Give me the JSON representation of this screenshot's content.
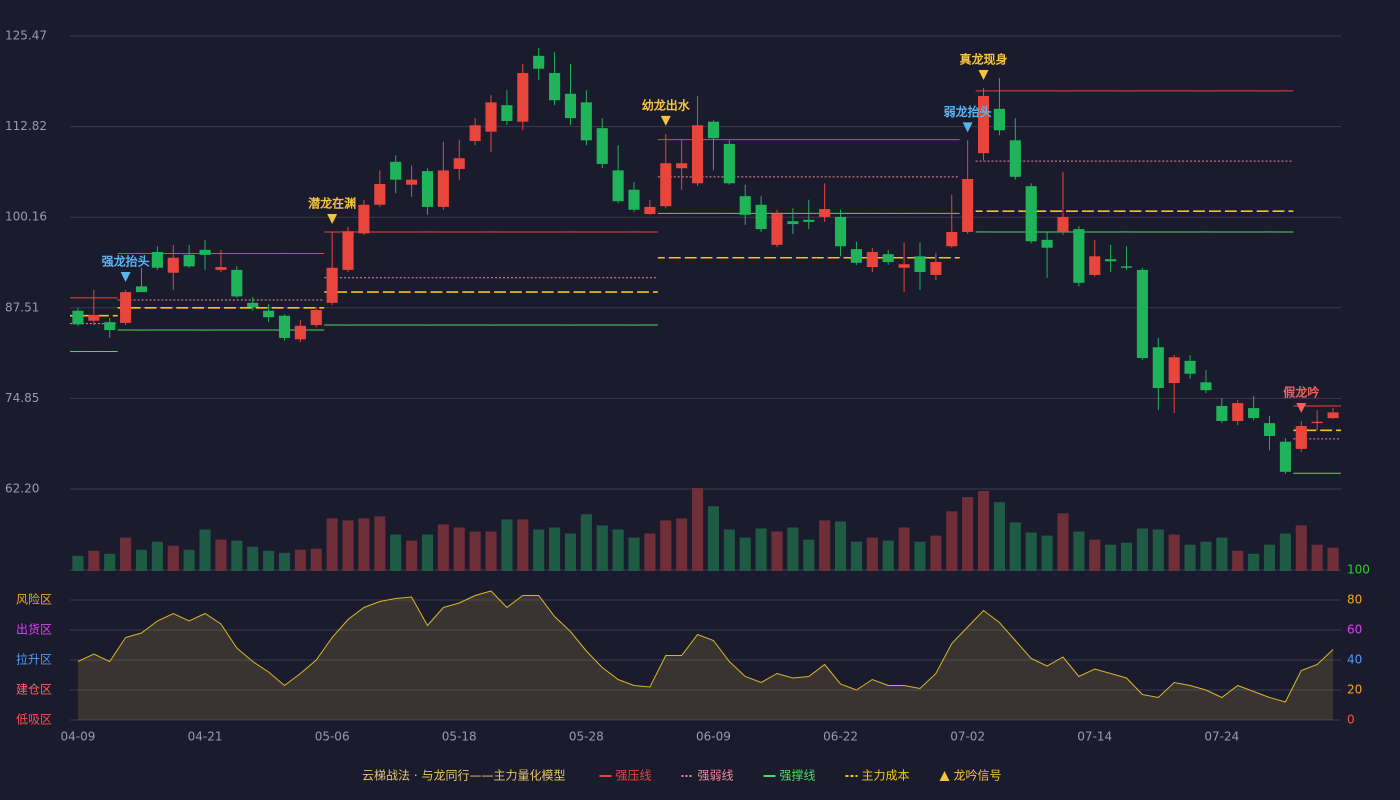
{
  "chart_data": {
    "type": "candlestick",
    "categories": [
      "04-09",
      null,
      null,
      null,
      null,
      null,
      null,
      null,
      "04-21",
      null,
      null,
      null,
      null,
      null,
      null,
      null,
      "05-06",
      null,
      null,
      null,
      null,
      null,
      null,
      null,
      "05-18",
      null,
      null,
      null,
      null,
      null,
      null,
      null,
      "05-28",
      null,
      null,
      null,
      null,
      null,
      null,
      null,
      "06-09",
      null,
      null,
      null,
      null,
      null,
      null,
      null,
      "06-22",
      null,
      null,
      null,
      null,
      null,
      null,
      null,
      "07-02",
      null,
      null,
      null,
      null,
      null,
      null,
      null,
      "07-14",
      null,
      null,
      null,
      null,
      null,
      null,
      null,
      "07-24",
      null,
      null,
      null,
      null,
      null,
      null,
      null
    ],
    "open": [
      87.1,
      85.7,
      85.5,
      85.4,
      90.5,
      95.3,
      92.4,
      94.9,
      95.6,
      92.8,
      92.8,
      88.2,
      87.1,
      86.4,
      83.1,
      85.1,
      88.2,
      92.8,
      97.9,
      101.9,
      107.9,
      104.7,
      106.6,
      101.6,
      106.9,
      110.8,
      112.1,
      115.8,
      113.5,
      122.7,
      120.3,
      117.4,
      116.2,
      112.6,
      106.7,
      104.0,
      100.6,
      101.7,
      107.0,
      104.9,
      113.5,
      110.4,
      103.1,
      101.9,
      96.3,
      99.6,
      99.8,
      100.2,
      100.2,
      95.7,
      93.2,
      95.0,
      93.1,
      94.7,
      92.1,
      96.1,
      98.1,
      109.1,
      115.3,
      110.9,
      104.5,
      97.0,
      98.1,
      98.5,
      92.1,
      94.3,
      93.3,
      92.8,
      82.0,
      77.0,
      80.1,
      77.1,
      73.8,
      71.7,
      73.5,
      71.4,
      68.8,
      67.8,
      71.4,
      72.1
    ],
    "high": [
      87.5,
      90.0,
      86.1,
      90.0,
      93.1,
      96.1,
      96.3,
      96.3,
      97.0,
      95.6,
      93.3,
      89.0,
      88.0,
      86.6,
      85.8,
      87.6,
      98.1,
      98.8,
      102.6,
      106.7,
      108.8,
      107.4,
      107.0,
      110.7,
      111.0,
      114.0,
      117.2,
      117.9,
      121.6,
      123.8,
      123.2,
      121.6,
      117.9,
      114.0,
      110.2,
      105.1,
      102.6,
      111.8,
      111.0,
      117.1,
      113.7,
      110.9,
      104.7,
      103.1,
      101.2,
      101.4,
      102.6,
      104.9,
      101.2,
      96.7,
      95.9,
      95.6,
      96.6,
      96.6,
      95.2,
      103.3,
      110.9,
      118.2,
      119.6,
      114.0,
      104.9,
      98.1,
      106.5,
      98.9,
      97.0,
      96.3,
      96.1,
      93.1,
      83.3,
      80.9,
      80.9,
      78.8,
      74.9,
      74.6,
      75.2,
      72.4,
      69.3,
      71.7,
      73.2,
      73.5
    ],
    "low": [
      85.0,
      85.1,
      83.3,
      85.1,
      89.7,
      92.8,
      90.0,
      93.1,
      92.8,
      92.5,
      88.9,
      87.1,
      85.5,
      82.9,
      82.7,
      84.8,
      87.9,
      92.5,
      97.7,
      101.6,
      103.5,
      103.0,
      100.5,
      101.2,
      105.4,
      110.2,
      109.3,
      113.0,
      112.3,
      119.3,
      115.8,
      113.0,
      110.2,
      107.0,
      102.1,
      100.9,
      100.5,
      101.4,
      104.0,
      104.5,
      106.7,
      104.7,
      99.1,
      98.1,
      96.0,
      97.8,
      98.5,
      99.5,
      94.7,
      93.5,
      92.5,
      93.5,
      89.7,
      90.0,
      91.4,
      95.9,
      97.8,
      108.1,
      111.6,
      105.4,
      96.5,
      91.7,
      97.7,
      90.5,
      91.9,
      92.5,
      92.8,
      80.2,
      73.2,
      72.8,
      77.6,
      75.6,
      71.4,
      71.1,
      71.8,
      67.6,
      64.3,
      67.4,
      70.4,
      72.0
    ],
    "close": [
      85.2,
      86.5,
      84.4,
      89.7,
      89.7,
      93.1,
      94.5,
      93.3,
      94.9,
      93.2,
      89.1,
      87.6,
      86.2,
      83.3,
      85.0,
      87.2,
      93.1,
      98.2,
      101.9,
      104.8,
      105.4,
      105.4,
      101.6,
      106.7,
      108.4,
      113.0,
      116.2,
      113.6,
      120.3,
      120.9,
      116.5,
      114.0,
      110.9,
      107.6,
      102.4,
      101.2,
      101.6,
      107.7,
      107.7,
      113.0,
      111.2,
      104.9,
      100.5,
      98.5,
      100.6,
      99.2,
      99.5,
      101.3,
      96.1,
      93.8,
      95.3,
      93.9,
      93.6,
      92.5,
      93.9,
      98.1,
      105.5,
      117.1,
      112.3,
      105.8,
      96.8,
      95.9,
      100.2,
      91.0,
      94.7,
      94.0,
      93.1,
      80.5,
      76.3,
      80.6,
      78.3,
      76.0,
      71.7,
      74.2,
      72.1,
      69.6,
      64.6,
      71.0,
      71.6,
      72.9
    ],
    "up_color": "#e8453c",
    "down_color": "#1fb35a",
    "ylim": [
      62.2,
      125.47
    ],
    "yticks": [
      {
        "value": 62.2,
        "label": "62.20"
      },
      74.85,
      87.51,
      100.16,
      112.82,
      125.47
    ],
    "grid": true,
    "volume": [
      15,
      20,
      17,
      33,
      21,
      29,
      25,
      21,
      41,
      31,
      30,
      24,
      20,
      18,
      21,
      22,
      52,
      50,
      52,
      54,
      36,
      30,
      36,
      46,
      43,
      39,
      39,
      51,
      51,
      41,
      43,
      37,
      56,
      45,
      41,
      33,
      37,
      50,
      52,
      82,
      64,
      41,
      33,
      42,
      39,
      43,
      31,
      50,
      49,
      29,
      33,
      30,
      43,
      29,
      35,
      59,
      73,
      79,
      68,
      48,
      38,
      35,
      57,
      39,
      31,
      26,
      28,
      42,
      41,
      36,
      26,
      29,
      33,
      20,
      17,
      26,
      37,
      45,
      26,
      23
    ],
    "vlim": [
      0,
      82
    ],
    "volume_up_color": "#6e2f38",
    "volume_down_color": "#1f5a45",
    "lines": [
      {
        "name": "强压线",
        "color": "#e8453c",
        "style": "solid",
        "values": [
          88.9,
          88.9,
          88.9,
          95.1,
          95.1,
          95.1,
          95.1,
          95.1,
          95.1,
          95.1,
          95.1,
          95.1,
          95.1,
          95.1,
          95.1,
          95.1,
          98.1,
          98.1,
          98.1,
          98.1,
          98.1,
          98.1,
          98.1,
          98.1,
          98.1,
          98.1,
          98.1,
          98.1,
          98.1,
          98.1,
          98.1,
          98.1,
          98.1,
          98.1,
          98.1,
          98.1,
          98.1,
          111.0,
          111.0,
          111.0,
          111.0,
          111.0,
          111.0,
          111.0,
          111.0,
          111.0,
          111.0,
          111.0,
          111.0,
          111.0,
          111.0,
          111.0,
          111.0,
          111.0,
          111.0,
          111.0,
          null,
          117.8,
          117.8,
          117.8,
          117.8,
          117.8,
          117.8,
          117.8,
          117.8,
          117.8,
          117.8,
          117.8,
          117.8,
          117.8,
          117.8,
          117.8,
          117.8,
          117.8,
          117.8,
          117.8,
          117.8,
          73.8,
          73.8,
          73.8
        ]
      },
      {
        "name": "强弱线",
        "color": "#f08a9a",
        "style": "dotted",
        "values": [
          85.3,
          85.3,
          85.3,
          88.6,
          88.6,
          88.6,
          88.6,
          88.6,
          88.6,
          88.6,
          88.6,
          88.6,
          88.6,
          88.6,
          88.6,
          88.6,
          91.7,
          91.7,
          91.7,
          91.7,
          91.7,
          91.7,
          91.7,
          91.7,
          91.7,
          91.7,
          91.7,
          91.7,
          91.7,
          91.7,
          91.7,
          91.7,
          91.7,
          91.7,
          91.7,
          91.7,
          91.7,
          105.8,
          105.8,
          105.8,
          105.8,
          105.8,
          105.8,
          105.8,
          105.8,
          105.8,
          105.8,
          105.8,
          105.8,
          105.8,
          105.8,
          105.8,
          105.8,
          105.8,
          105.8,
          105.8,
          null,
          108.0,
          108.0,
          108.0,
          108.0,
          108.0,
          108.0,
          108.0,
          108.0,
          108.0,
          108.0,
          108.0,
          108.0,
          108.0,
          108.0,
          108.0,
          108.0,
          108.0,
          108.0,
          108.0,
          108.0,
          69.2,
          69.2,
          69.2
        ]
      },
      {
        "name": "强撑线",
        "color": "#4cd964",
        "style": "solid",
        "values": [
          81.4,
          81.4,
          81.4,
          84.4,
          84.4,
          84.4,
          84.4,
          84.4,
          84.4,
          84.4,
          84.4,
          84.4,
          84.4,
          84.4,
          84.4,
          84.4,
          85.1,
          85.1,
          85.1,
          85.1,
          85.1,
          85.1,
          85.1,
          85.1,
          85.1,
          85.1,
          85.1,
          85.1,
          85.1,
          85.1,
          85.1,
          85.1,
          85.1,
          85.1,
          85.1,
          85.1,
          85.1,
          100.7,
          100.7,
          100.7,
          100.7,
          100.7,
          100.7,
          100.7,
          100.7,
          100.7,
          100.7,
          100.7,
          100.7,
          100.7,
          100.7,
          100.7,
          100.7,
          100.7,
          100.7,
          100.7,
          null,
          98.1,
          98.1,
          98.1,
          98.1,
          98.1,
          98.1,
          98.1,
          98.1,
          98.1,
          98.1,
          98.1,
          98.1,
          98.1,
          98.1,
          98.1,
          98.1,
          98.1,
          98.1,
          98.1,
          98.1,
          64.4,
          64.4,
          64.4
        ]
      },
      {
        "name": "主力成本",
        "color": "#f5c518",
        "style": "dashed",
        "values": [
          86.4,
          86.4,
          86.4,
          87.5,
          87.5,
          87.5,
          87.5,
          87.5,
          87.5,
          87.5,
          87.5,
          87.5,
          87.5,
          87.5,
          87.5,
          87.5,
          89.7,
          89.7,
          89.7,
          89.7,
          89.7,
          89.7,
          89.7,
          89.7,
          89.7,
          89.7,
          89.7,
          89.7,
          89.7,
          89.7,
          89.7,
          89.7,
          89.7,
          89.7,
          89.7,
          89.7,
          89.7,
          94.5,
          94.5,
          94.5,
          94.5,
          94.5,
          94.5,
          94.5,
          94.5,
          94.5,
          94.5,
          94.5,
          94.5,
          94.5,
          94.5,
          94.5,
          94.5,
          94.5,
          94.5,
          94.5,
          null,
          101.0,
          101.0,
          101.0,
          101.0,
          101.0,
          101.0,
          101.0,
          101.0,
          101.0,
          101.0,
          101.0,
          101.0,
          101.0,
          101.0,
          101.0,
          101.0,
          101.0,
          101.0,
          101.0,
          101.0,
          70.4,
          70.4,
          70.4
        ]
      }
    ],
    "signals": [
      {
        "index": 3,
        "label": "强龙抬头",
        "color": "#5ab4f0"
      },
      {
        "index": 16,
        "label": "潜龙在渊",
        "color": "#f5c242"
      },
      {
        "index": 37,
        "label": "幼龙出水",
        "color": "#f5c242"
      },
      {
        "index": 56,
        "label": "弱龙抬头",
        "color": "#5ab4f0"
      },
      {
        "index": 57,
        "label": "真龙现身",
        "color": "#f5c242"
      },
      {
        "index": 77,
        "label": "假龙吟",
        "color": "#f06060"
      }
    ],
    "signal_legend": {
      "name": "龙吟信号",
      "color": "#f5c242"
    },
    "legend_title": "云梯战法 · 与龙同行——主力量化模型",
    "indicator": {
      "color": "#d9b526",
      "values": [
        39,
        44,
        39,
        55,
        58,
        66,
        71,
        66,
        71,
        64,
        48,
        39,
        32,
        23,
        31,
        40,
        55,
        67,
        75,
        79,
        81,
        82,
        63,
        75,
        78,
        83,
        86,
        75,
        83,
        83,
        69,
        59,
        46,
        35,
        27,
        23,
        22,
        43,
        43,
        57,
        53,
        39,
        29,
        25,
        31,
        28,
        29,
        37,
        24,
        20,
        27,
        23,
        23,
        21,
        31,
        51,
        62,
        73,
        65,
        53,
        41,
        36,
        42,
        29,
        34,
        31,
        28,
        17,
        15,
        25,
        23,
        20,
        15,
        23,
        19,
        15,
        12,
        33,
        37,
        47
      ],
      "ylim": [
        0,
        100
      ],
      "yticks": [
        0,
        20,
        40,
        60,
        80,
        100
      ],
      "ytick_colors": [
        "#ff4d4d",
        "#f5a623",
        "#4a9eff",
        "#e040fb",
        "#f5a623",
        "#33cc33"
      ],
      "zones": [
        {
          "value": 0,
          "label": "低吸区",
          "color": "#ff4d4d"
        },
        {
          "value": 20,
          "label": "建仓区",
          "color": "#ff6060"
        },
        {
          "value": 40,
          "label": "拉升区",
          "color": "#4a9eff"
        },
        {
          "value": 60,
          "label": "出货区",
          "color": "#e040fb"
        },
        {
          "value": 80,
          "label": "风险区",
          "color": "#f5a623"
        }
      ]
    }
  }
}
